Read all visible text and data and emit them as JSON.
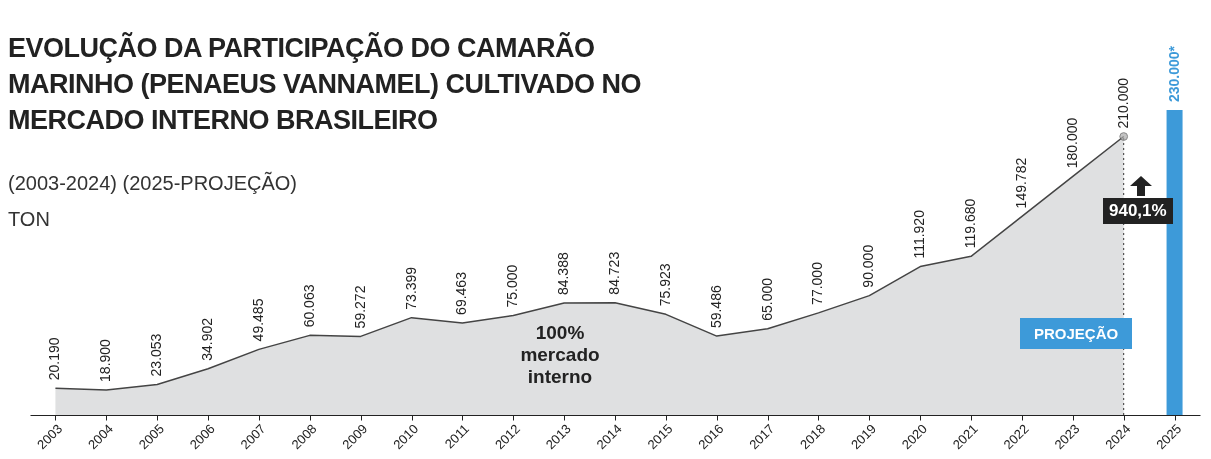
{
  "chart_data": {
    "type": "area",
    "title": "EVOLUÇÃO DA PARTICIPAÇÃO DO CAMARÃO MARINHO (PENAEUS VANNAMEL) CULTIVADO NO MERCADO INTERNO BRASILEIRO",
    "subtitle": "(2003-2024) (2025-PROJEÇÃO)",
    "ylabel": "TON",
    "categories": [
      "2003",
      "2004",
      "2005",
      "2006",
      "2007",
      "2008",
      "2009",
      "2010",
      "2011",
      "2012",
      "2013",
      "2014",
      "2015",
      "2016",
      "2017",
      "2018",
      "2019",
      "2020",
      "2021",
      "2022",
      "2023",
      "2024",
      "2025"
    ],
    "series": [
      {
        "color": "#d1d3d4",
        "values": [
          20190,
          18900,
          23053,
          34902,
          49485,
          60063,
          59272,
          73399,
          69463,
          75000,
          84388,
          84723,
          75923,
          59486,
          65000,
          77000,
          90000,
          111920,
          119680,
          149782,
          180000,
          210000,
          null
        ],
        "value_labels": [
          "20.190",
          "18.900",
          "23.053",
          "34.902",
          "49.485",
          "60.063",
          "59.272",
          "73.399",
          "69.463",
          "75.000",
          "84.388",
          "84.723",
          "75.923",
          "59.486",
          "65.000",
          "77.000",
          "90.000",
          "111.920",
          "119.680",
          "149.782",
          "180.000",
          "210.000",
          null
        ]
      },
      {
        "type": "bar",
        "color": "#3d9ad9",
        "values": [
          null,
          null,
          null,
          null,
          null,
          null,
          null,
          null,
          null,
          null,
          null,
          null,
          null,
          null,
          null,
          null,
          null,
          null,
          null,
          null,
          null,
          null,
          230000
        ],
        "value_labels": [
          null,
          null,
          null,
          null,
          null,
          null,
          null,
          null,
          null,
          null,
          null,
          null,
          null,
          null,
          null,
          null,
          null,
          null,
          null,
          null,
          null,
          null,
          "230.000*"
        ]
      }
    ],
    "ref_lines": [
      {
        "axis": "x",
        "value": "2024",
        "line_style": "dotted",
        "color": "#333333"
      }
    ],
    "annotations": [
      "100% mercado interno",
      "940,1%",
      "PROJEÇÃO"
    ]
  }
}
